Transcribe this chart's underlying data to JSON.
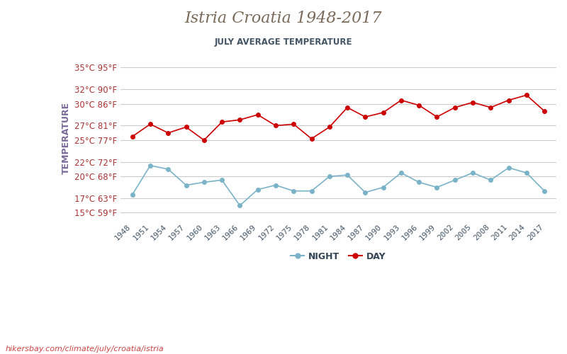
{
  "title": "Istria Croatia 1948-2017",
  "subtitle": "JULY AVERAGE TEMPERATURE",
  "ylabel": "TEMPERATURE",
  "watermark": "hikersbay.com/climate/july/croatia/istria",
  "years": [
    1948,
    1951,
    1954,
    1957,
    1960,
    1963,
    1966,
    1969,
    1972,
    1975,
    1978,
    1981,
    1984,
    1987,
    1990,
    1993,
    1996,
    1999,
    2002,
    2005,
    2008,
    2011,
    2014,
    2017
  ],
  "day_temps": [
    25.5,
    27.2,
    26.0,
    26.8,
    25.0,
    27.5,
    27.8,
    28.5,
    27.0,
    27.2,
    25.2,
    26.8,
    29.5,
    28.2,
    28.8,
    30.5,
    29.8,
    28.2,
    29.5,
    30.2,
    29.5,
    30.5,
    31.2,
    29.0
  ],
  "night_temps": [
    17.5,
    21.5,
    21.0,
    18.8,
    19.2,
    19.5,
    16.0,
    18.2,
    18.8,
    18.0,
    18.0,
    20.0,
    20.2,
    17.8,
    18.5,
    20.5,
    19.2,
    18.5,
    19.5,
    20.5,
    19.5,
    21.2,
    20.5,
    18.0
  ],
  "yticks_c": [
    15,
    17,
    20,
    22,
    25,
    27,
    30,
    32,
    35
  ],
  "yticks_f": [
    59,
    63,
    68,
    72,
    77,
    81,
    86,
    90,
    95
  ],
  "ylim": [
    14.0,
    36.5
  ],
  "day_color": "#cc0000",
  "night_color": "#7ab3c8",
  "title_color": "#7a6a5a",
  "subtitle_color": "#445566",
  "axis_label_color": "#7a6a9a",
  "tick_color": "#aa3333",
  "grid_color": "#cccccc",
  "bg_color": "#ffffff",
  "watermark_color": "#cc4444"
}
